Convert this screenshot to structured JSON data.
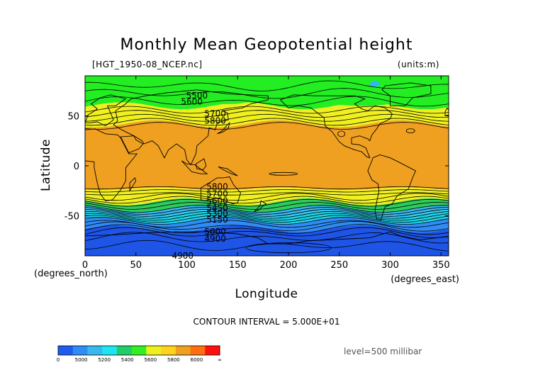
{
  "chart_data": {
    "type": "heatmap",
    "title": "Monthly Mean Geopotential height",
    "file_label": "[HGT_1950-08_NCEP.nc]",
    "units_label": "(units:m)",
    "xlabel": "Longitude",
    "ylabel": "Latitude",
    "x_unit": "(degrees_east)",
    "y_unit": "(degrees_north)",
    "xlim": [
      0,
      357.5
    ],
    "ylim": [
      -90,
      90
    ],
    "x_ticks": [
      0,
      50,
      100,
      150,
      200,
      250,
      300,
      350
    ],
    "y_ticks": [
      -50,
      0,
      50
    ],
    "contour_interval_text": "CONTOUR INTERVAL = 5.000E+01",
    "level_text": "level=500 millibar",
    "colorbar": {
      "tick_labels": [
        "0",
        "5000",
        "5200",
        "5400",
        "5600",
        "5800",
        "6000",
        "∞"
      ],
      "colors": [
        "#1e5cf0",
        "#2f8cf5",
        "#37b8ee",
        "#1ee6f0",
        "#22cc66",
        "#33ee22",
        "#eef01e",
        "#ffd21e",
        "#f0a020",
        "#ff6f10",
        "#ff1010"
      ]
    },
    "band_legend": {
      "5500": "#22ee22",
      "5700": "#f0f020",
      "5800": "#f0a020",
      "5600": "#2ecc5c",
      "5400": "#3ab8ee",
      "5300": "#1ed2e6",
      "5100": "#2f8cf5",
      "4900": "#1e55e6"
    },
    "contour_labels": [
      {
        "value": "5500",
        "lon": 110,
        "lat": 70
      },
      {
        "value": "5600",
        "lon": 105,
        "lat": 64
      },
      {
        "value": "5700",
        "lon": 128,
        "lat": 52
      },
      {
        "value": "5800",
        "lon": 128,
        "lat": 45
      },
      {
        "value": "5800",
        "lon": 130,
        "lat": -21
      },
      {
        "value": "5700",
        "lon": 130,
        "lat": -28
      },
      {
        "value": "5600",
        "lon": 130,
        "lat": -35
      },
      {
        "value": "5450",
        "lon": 130,
        "lat": -42
      },
      {
        "value": "5300",
        "lon": 130,
        "lat": -48
      },
      {
        "value": "5150",
        "lon": 130,
        "lat": -54
      },
      {
        "value": "5000",
        "lon": 128,
        "lat": -66
      },
      {
        "value": "4900",
        "lon": 128,
        "lat": -73
      },
      {
        "value": "4900",
        "lon": 96,
        "lat": -90
      }
    ],
    "zonal_bands": [
      {
        "lat_top": 90,
        "lat_bottom": 76,
        "value": 5500
      },
      {
        "lat_top": 76,
        "lat_bottom": 60,
        "value": 5500
      },
      {
        "lat_top": 60,
        "lat_bottom": 48,
        "value": 5700
      },
      {
        "lat_top": 48,
        "lat_bottom": 42,
        "value": 5700
      },
      {
        "lat_top": 42,
        "lat_bottom": -23,
        "value": 5800
      },
      {
        "lat_top": -23,
        "lat_bottom": -36,
        "value": 5700
      },
      {
        "lat_top": -36,
        "lat_bottom": -43,
        "value": 5600
      },
      {
        "lat_top": -43,
        "lat_bottom": -48,
        "value": 5400
      },
      {
        "lat_top": -48,
        "lat_bottom": -55,
        "value": 5300
      },
      {
        "lat_top": -55,
        "lat_bottom": -63,
        "value": 5100
      },
      {
        "lat_top": -63,
        "lat_bottom": -90,
        "value": 4900
      }
    ]
  }
}
